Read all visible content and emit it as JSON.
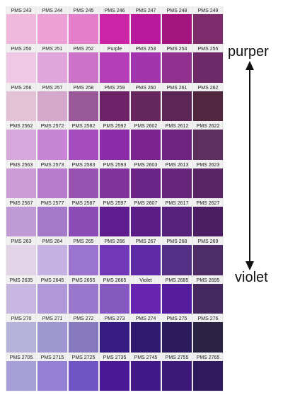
{
  "swatch_rows": [
    [
      {
        "label": "PMS 243",
        "color": "#f0b8dc"
      },
      {
        "label": "PMS 244",
        "color": "#eca0d6"
      },
      {
        "label": "PMS 245",
        "color": "#e47ecb"
      },
      {
        "label": "PMS 246",
        "color": "#cb24a6"
      },
      {
        "label": "PMS 247",
        "color": "#b8199c"
      },
      {
        "label": "PMS 248",
        "color": "#a2157f"
      },
      {
        "label": "PMS 249",
        "color": "#7d2b6a"
      }
    ],
    [
      {
        "label": "PMS 250",
        "color": "#eec8e4"
      },
      {
        "label": "PMS 251",
        "color": "#e0a6dc"
      },
      {
        "label": "PMS 252",
        "color": "#cc72c8"
      },
      {
        "label": "Purple",
        "color": "#b33eb7"
      },
      {
        "label": "PMS 253",
        "color": "#a235ad"
      },
      {
        "label": "PMS 254",
        "color": "#91308f"
      },
      {
        "label": "PMS 255",
        "color": "#6e2a68"
      }
    ],
    [
      {
        "label": "PMS 256",
        "color": "#e4c2d6"
      },
      {
        "label": "PMS 257",
        "color": "#d3a8ca"
      },
      {
        "label": "PMS 258",
        "color": "#995898"
      },
      {
        "label": "PMS 259",
        "color": "#6e2267"
      },
      {
        "label": "PMS 260",
        "color": "#66265e"
      },
      {
        "label": "PMS 261",
        "color": "#5c2555"
      },
      {
        "label": "PMS 262",
        "color": "#51263f"
      }
    ],
    [
      {
        "label": "PMS 2562",
        "color": "#d7a8dc"
      },
      {
        "label": "PMS 2572",
        "color": "#c885d6"
      },
      {
        "label": "PMS 2582",
        "color": "#a54cbe"
      },
      {
        "label": "PMS 2592",
        "color": "#8c2ba8"
      },
      {
        "label": "PMS 2602",
        "color": "#7b248f"
      },
      {
        "label": "PMS 2612",
        "color": "#6f2380"
      },
      {
        "label": "PMS 2622",
        "color": "#5c2f5f"
      }
    ],
    [
      {
        "label": "PMS 2563",
        "color": "#cc9cd6"
      },
      {
        "label": "PMS 2573",
        "color": "#b67ccb"
      },
      {
        "label": "PMS 2583",
        "color": "#9852b0"
      },
      {
        "label": "PMS 2593",
        "color": "#80339a"
      },
      {
        "label": "PMS 2603",
        "color": "#6b2587"
      },
      {
        "label": "PMS 2613",
        "color": "#662578"
      },
      {
        "label": "PMS 2623",
        "color": "#5a2565"
      }
    ],
    [
      {
        "label": "PMS 2567",
        "color": "#c09ad4"
      },
      {
        "label": "PMS 2577",
        "color": "#a379c8"
      },
      {
        "label": "PMS 2587",
        "color": "#8c4cb5"
      },
      {
        "label": "PMS 2597",
        "color": "#5f1c8f"
      },
      {
        "label": "PMS 2607",
        "color": "#5a1d86"
      },
      {
        "label": "PMS 2617",
        "color": "#55217a"
      },
      {
        "label": "PMS 2627",
        "color": "#4b1d63"
      }
    ],
    [
      {
        "label": "PMS 263",
        "color": "#e2d3e6"
      },
      {
        "label": "PMS 264",
        "color": "#c6b2e2"
      },
      {
        "label": "PMS 265",
        "color": "#9b74d0"
      },
      {
        "label": "PMS 266",
        "color": "#7038b6"
      },
      {
        "label": "PMS 267",
        "color": "#5e2aa6"
      },
      {
        "label": "PMS 268",
        "color": "#533086"
      },
      {
        "label": "PMS 269",
        "color": "#4d2c68"
      }
    ],
    [
      {
        "label": "PMS 2635",
        "color": "#c7b7e1"
      },
      {
        "label": "PMS 2645",
        "color": "#af97d8"
      },
      {
        "label": "PMS 2655",
        "color": "#9877cc"
      },
      {
        "label": "PMS 2665",
        "color": "#8659c0"
      },
      {
        "label": "Violet",
        "color": "#6624b0"
      },
      {
        "label": "PMS 2685",
        "color": "#561c9e"
      },
      {
        "label": "PMS 2695",
        "color": "#462861"
      }
    ],
    [
      {
        "label": "PMS 270",
        "color": "#b5b3da"
      },
      {
        "label": "PMS 271",
        "color": "#9f98d0"
      },
      {
        "label": "PMS 272",
        "color": "#8779bd"
      },
      {
        "label": "PMS 273",
        "color": "#361b80"
      },
      {
        "label": "PMS 274",
        "color": "#2f1a70"
      },
      {
        "label": "PMS 275",
        "color": "#2b1a5c"
      },
      {
        "label": "PMS 276",
        "color": "#2a2344"
      }
    ],
    [
      {
        "label": "PMS 2705",
        "color": "#a7a0d8"
      },
      {
        "label": "PMS 2715",
        "color": "#9480d4"
      },
      {
        "label": "PMS 2725",
        "color": "#7055c4"
      },
      {
        "label": "PMS 2735",
        "color": "#4a1796"
      },
      {
        "label": "PMS 2745",
        "color": "#421888"
      },
      {
        "label": "PMS 2755",
        "color": "#3c1878"
      },
      {
        "label": "PMS 2765",
        "color": "#2f1a5e"
      }
    ]
  ],
  "annotations": {
    "top_label": "purper",
    "bottom_label": "violet",
    "arrow_icon": "double-headed-vertical-arrow"
  }
}
